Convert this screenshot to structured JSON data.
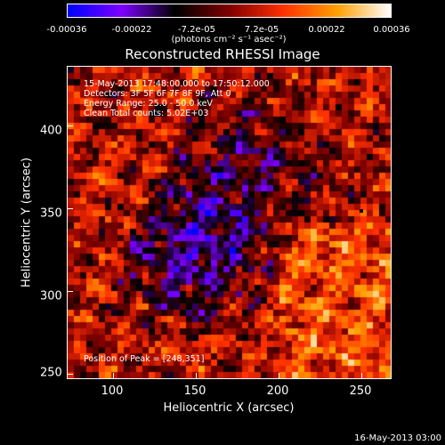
{
  "colorbar": {
    "ticks": [
      "-0.00036",
      "-0.00022",
      "-7.2e-05",
      "7.2e-05",
      "0.00022",
      "0.00036"
    ],
    "unit": "(photons cm⁻² s⁻¹ asec⁻²)",
    "colors": [
      "#0000ff",
      "#7f00ff",
      "#000000",
      "#800000",
      "#ff3000",
      "#ffa000",
      "#ffffff"
    ]
  },
  "chart_data": {
    "type": "heatmap",
    "title": "Reconstructed RHESSI Image",
    "xlabel": "Heliocentric X (arcsec)",
    "ylabel": "Heliocentric Y (arcsec)",
    "xlim": [
      70,
      266
    ],
    "ylim": [
      250,
      438
    ],
    "xticks": [
      "100",
      "150",
      "200",
      "250"
    ],
    "yticks": [
      "250",
      "300",
      "350",
      "400"
    ],
    "xtick_values": [
      100,
      150,
      200,
      250
    ],
    "ytick_values": [
      250,
      300,
      350,
      400
    ],
    "value_range": [
      -0.00036,
      0.00036
    ],
    "peak": [
      248,
      351
    ],
    "annotations": [
      "15-May-2013 17:48:00.000 to 17:50:12.000",
      "Detectors: 3F 5F 6F 7F 8F 9F, Att 0",
      "Energy Range: 25.0 - 50.0 keV",
      "Clean     Total counts: 5.02E+03"
    ],
    "peak_label": "Position of Peak = [248,351]"
  },
  "footer": {
    "timestamp": "16-May-2013 03:00"
  }
}
